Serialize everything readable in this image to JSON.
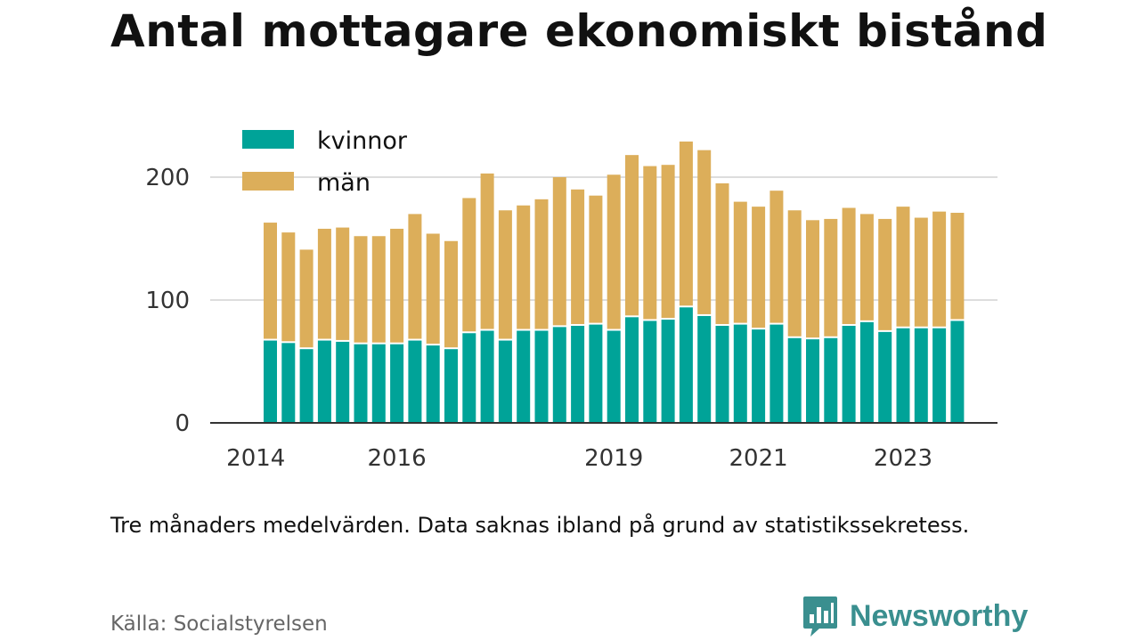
{
  "chart_data": {
    "type": "bar",
    "stacked": true,
    "title": "Antal mottagare ekonomiskt bistånd",
    "xlabel": "",
    "ylabel": "",
    "ylim": [
      0,
      240
    ],
    "y_ticks": [
      0,
      100,
      200
    ],
    "x_tick_labels": [
      {
        "label": "2014",
        "index": -0.8
      },
      {
        "label": "2016",
        "index": 7
      },
      {
        "label": "2019",
        "index": 19
      },
      {
        "label": "2021",
        "index": 27
      },
      {
        "label": "2023",
        "index": 35
      }
    ],
    "grid": true,
    "legend": "top-left",
    "series": [
      {
        "name": "kvinnor",
        "color": "#00a398",
        "values": [
          67,
          65,
          60,
          67,
          66,
          64,
          64,
          64,
          67,
          63,
          60,
          73,
          75,
          67,
          75,
          75,
          78,
          79,
          80,
          75,
          86,
          83,
          84,
          94,
          87,
          79,
          80,
          76,
          80,
          69,
          68,
          69,
          79,
          82,
          74,
          77,
          77,
          77,
          83
        ]
      },
      {
        "name": "män",
        "color": "#dcae5a",
        "values": [
          96,
          90,
          81,
          91,
          93,
          88,
          88,
          94,
          103,
          91,
          88,
          110,
          128,
          106,
          102,
          107,
          122,
          111,
          105,
          127,
          132,
          126,
          126,
          135,
          135,
          116,
          100,
          100,
          109,
          104,
          97,
          97,
          96,
          88,
          92,
          99,
          90,
          95,
          88
        ]
      }
    ]
  },
  "note": "Tre månaders medelvärden. Data saknas ibland på grund av statistikssekretess.",
  "source": "Källa: Socialstyrelsen",
  "brand": {
    "name": "Newsworthy",
    "icon": "newsworthy-logo-icon",
    "color": "#3a8f8f"
  }
}
